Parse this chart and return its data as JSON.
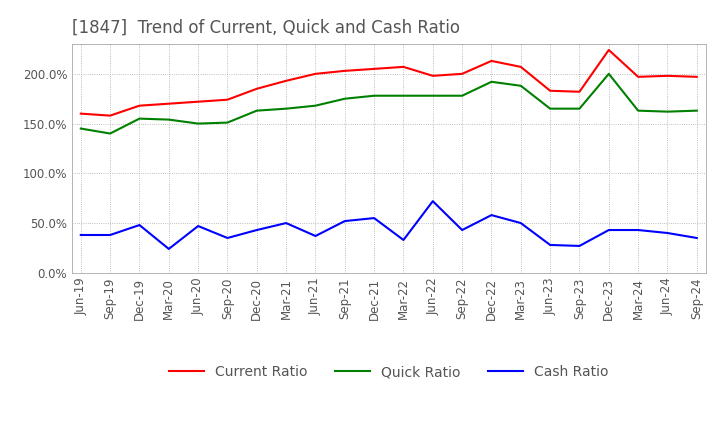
{
  "title": "[1847]  Trend of Current, Quick and Cash Ratio",
  "x_labels": [
    "Jun-19",
    "Sep-19",
    "Dec-19",
    "Mar-20",
    "Jun-20",
    "Sep-20",
    "Dec-20",
    "Mar-21",
    "Jun-21",
    "Sep-21",
    "Dec-21",
    "Mar-22",
    "Jun-22",
    "Sep-22",
    "Dec-22",
    "Mar-23",
    "Jun-23",
    "Sep-23",
    "Dec-23",
    "Mar-24",
    "Jun-24",
    "Sep-24"
  ],
  "current_ratio": [
    160,
    158,
    168,
    170,
    172,
    174,
    185,
    193,
    200,
    203,
    205,
    207,
    198,
    200,
    213,
    207,
    183,
    182,
    224,
    197,
    198,
    197
  ],
  "quick_ratio": [
    145,
    140,
    155,
    154,
    150,
    151,
    163,
    165,
    168,
    175,
    178,
    178,
    178,
    178,
    192,
    188,
    165,
    165,
    200,
    163,
    162,
    163
  ],
  "cash_ratio": [
    38,
    38,
    48,
    24,
    47,
    35,
    43,
    50,
    37,
    52,
    55,
    33,
    72,
    43,
    58,
    50,
    28,
    27,
    43,
    43,
    40,
    35
  ],
  "colors": {
    "current": "#ff0000",
    "quick": "#008000",
    "cash": "#0000ff"
  },
  "ylim": [
    0,
    230
  ],
  "yticks": [
    0,
    50,
    100,
    150,
    200
  ],
  "ytick_labels": [
    "0.0%",
    "50.0%",
    "100.0%",
    "150.0%",
    "200.0%"
  ],
  "background_color": "#ffffff",
  "grid_color": "#aaaaaa",
  "title_fontsize": 12,
  "legend_fontsize": 10,
  "tick_fontsize": 8.5
}
